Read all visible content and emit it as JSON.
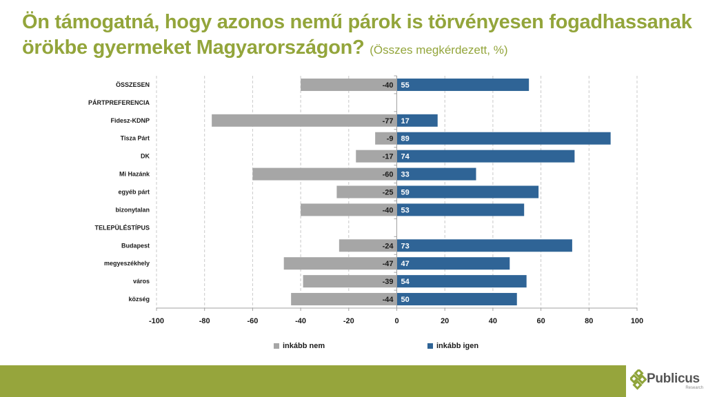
{
  "title": {
    "main": "Ön támogatná, hogy azonos nemű párok is törvényesen fogadhassanak örökbe gyermeket Magyarországon?",
    "subtitle": "(Összes megkérdezett, %)"
  },
  "colors": {
    "title": "#93a53b",
    "negative_bar": "#a6a6a6",
    "positive_bar": "#2f6496",
    "footer": "#96a53c"
  },
  "chart_data": {
    "type": "bar",
    "orientation": "horizontal-diverging",
    "title": "Ön támogatná, hogy azonos nemű párok is törvényesen fogadhassanak örökbe gyermeket Magyarországon?",
    "subtitle": "(Összes megkérdezett, %)",
    "categories": [
      "ÖSSZESEN",
      "PÁRTPREFERENCIA",
      "Fidesz-KDNP",
      "Tisza Párt",
      "DK",
      "Mi Hazánk",
      "egyéb párt",
      "bizonytalan",
      "TELEPÜLÉSTÍPUS",
      "Budapest",
      "megyeszékhely",
      "város",
      "község"
    ],
    "series": [
      {
        "name": "inkább nem",
        "color": "#a6a6a6",
        "values": [
          -40,
          null,
          -77,
          -9,
          -17,
          -60,
          -25,
          -40,
          null,
          -24,
          -47,
          -39,
          -44
        ]
      },
      {
        "name": "inkább igen",
        "color": "#2f6496",
        "values": [
          55,
          null,
          17,
          89,
          74,
          33,
          59,
          53,
          null,
          73,
          47,
          54,
          50
        ]
      }
    ],
    "xlim": [
      -100,
      100
    ],
    "xticks": [
      "-100",
      "-80",
      "-60",
      "-40",
      "-20",
      "0",
      "20",
      "40",
      "60",
      "80",
      "100"
    ],
    "xlabel": "",
    "ylabel": "",
    "grid": "vertical-dashed",
    "legend_position": "bottom"
  },
  "legend": [
    {
      "label": "inkább nem"
    },
    {
      "label": "inkább igen"
    }
  ],
  "logo": {
    "name": "Publicus",
    "sub": "Research"
  }
}
